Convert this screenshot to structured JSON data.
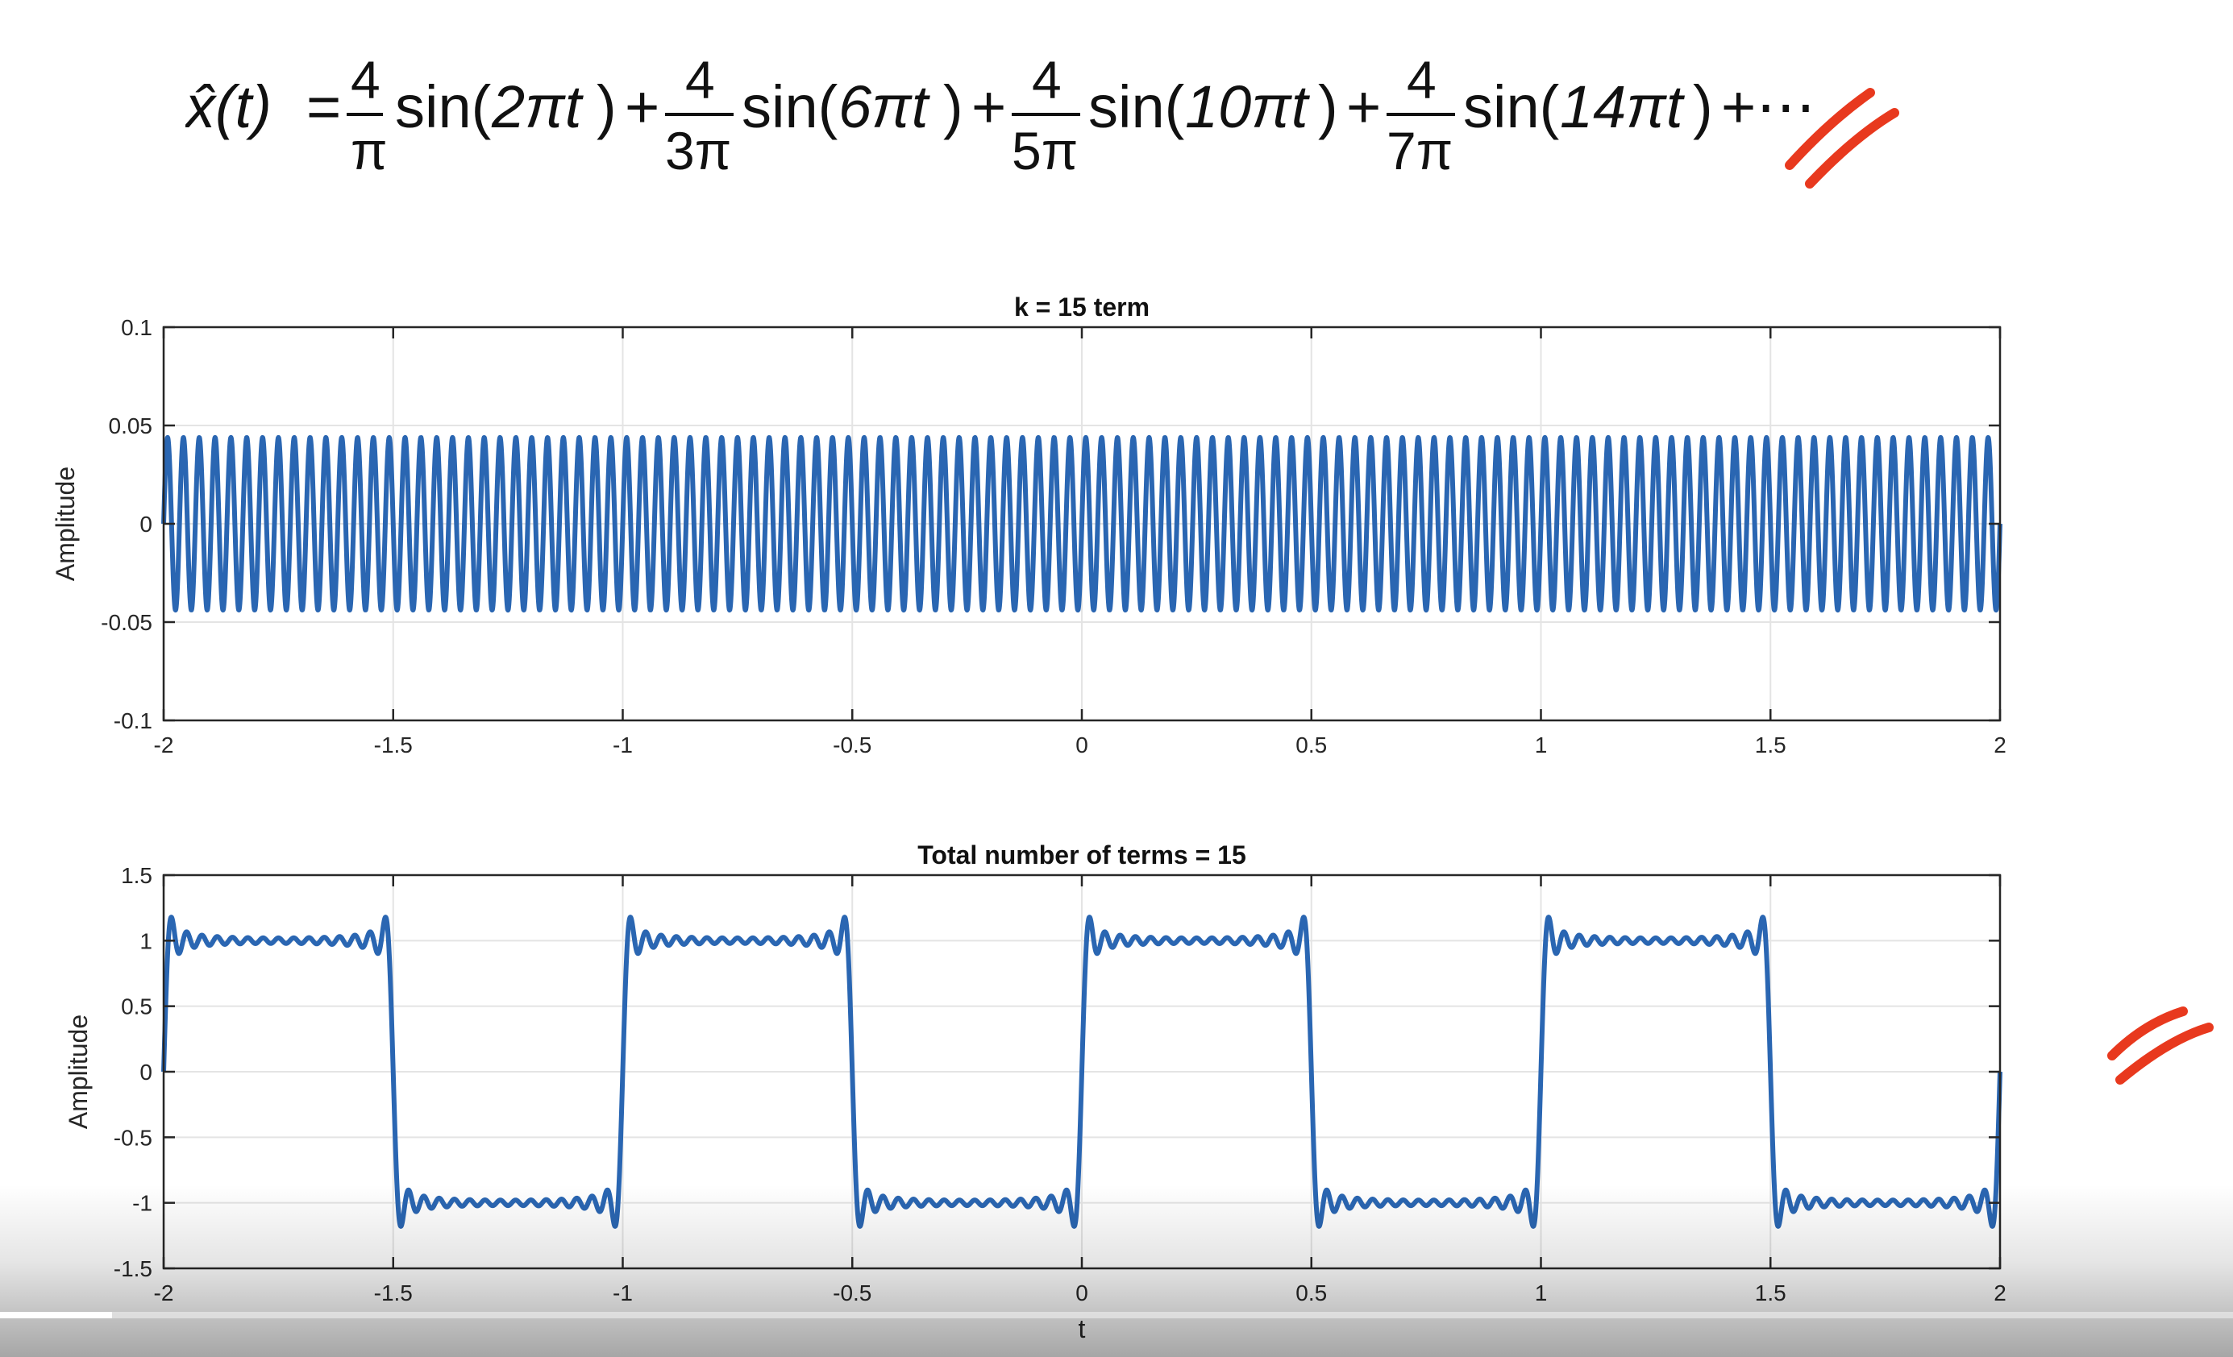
{
  "equation": {
    "lhs": "x̂(t)",
    "terms": [
      {
        "num": "4",
        "den": "π",
        "arg": "2πt"
      },
      {
        "num": "4",
        "den": "3π",
        "arg": "6πt"
      },
      {
        "num": "4",
        "den": "5π",
        "arg": "10πt"
      },
      {
        "num": "4",
        "den": "7π",
        "arg": "14πt"
      }
    ],
    "tail": "+⋯"
  },
  "annotation_color": "#e8391e",
  "line_color": "#2a66b2",
  "video": {
    "progress": 0.05
  },
  "chart_data": [
    {
      "type": "line",
      "title": "k = 15 term",
      "xlabel": "",
      "ylabel": "Amplitude",
      "xlim": [
        -2,
        2
      ],
      "ylim": [
        -0.1,
        0.1
      ],
      "xticks": [
        "-2",
        "-1.5",
        "-1",
        "-0.5",
        "0",
        "0.5",
        "1",
        "1.5",
        "2"
      ],
      "yticks": [
        "0.1",
        "0.05",
        "0",
        "-0.05",
        "-0.1"
      ],
      "grid": true,
      "series": [
        {
          "function": "(4/(29*pi))*sin(2*pi*29*t)",
          "amplitude": 0.0439,
          "frequency_hz": 29
        }
      ]
    },
    {
      "type": "line",
      "title": "Total number of terms = 15",
      "xlabel": "t",
      "ylabel": "Amplitude",
      "xlim": [
        -2,
        2
      ],
      "ylim": [
        -1.5,
        1.5
      ],
      "xticks": [
        "-2",
        "-1.5",
        "-1",
        "-0.5",
        "0",
        "0.5",
        "1",
        "1.5",
        "2"
      ],
      "yticks": [
        "1.5",
        "1",
        "0.5",
        "0",
        "-0.5",
        "-1",
        "-1.5"
      ],
      "grid": true,
      "series": [
        {
          "function": "sum_{n=1..15} (4/((2n-1)*pi))*sin(2*pi*(2n-1)*t)",
          "terms": 15
        }
      ]
    }
  ]
}
